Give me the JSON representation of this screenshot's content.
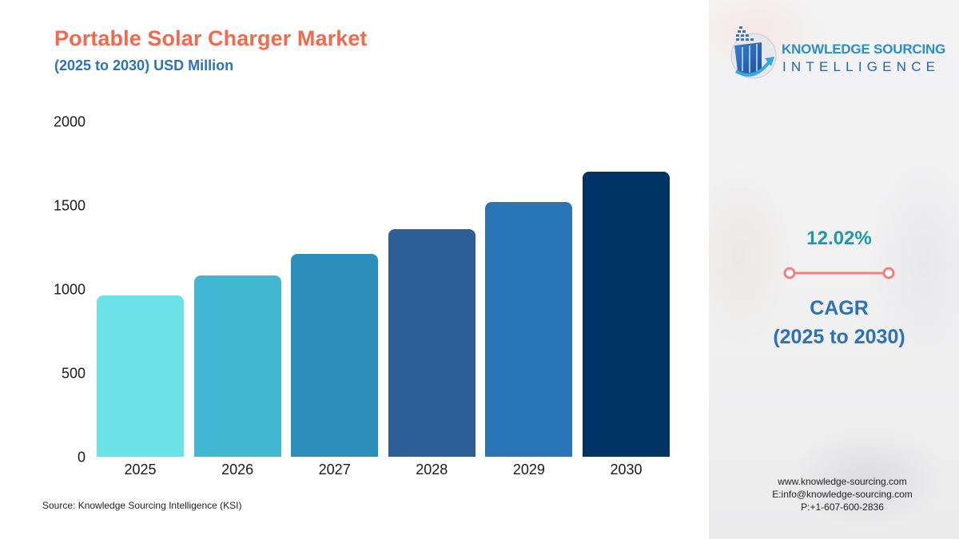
{
  "header": {
    "title": "Portable Solar Charger Market",
    "subtitle": "(2025 to 2030) USD Million"
  },
  "colors": {
    "title": "#f26a4b",
    "subtitle": "#2b72b8",
    "cagr_value": "#1f98a8",
    "cagr_connector": "#f08080",
    "bars": [
      "#6be3e6",
      "#42b7d3",
      "#2d8dbb",
      "#2e5e96",
      "#2a74b8",
      "#023366"
    ]
  },
  "chart_data": {
    "type": "bar",
    "title": "Portable Solar Charger Market",
    "subtitle": "(2025 to 2030) USD Million",
    "xlabel": "",
    "ylabel": "USD Million",
    "categories": [
      "2025",
      "2026",
      "2027",
      "2028",
      "2029",
      "2030"
    ],
    "values": [
      964,
      1081,
      1211,
      1359,
      1520,
      1701
    ],
    "yticks": [
      "0",
      "500",
      "1000",
      "1500",
      "2000"
    ],
    "ylim": [
      0,
      2000
    ],
    "grid": false,
    "legend": null
  },
  "brand": {
    "line1": "KNOWLEDGE SOURCING",
    "line2": "INTELLIGENCE",
    "icon": "ksi-logo-icon"
  },
  "cagr": {
    "value": "12.02%",
    "label": "CAGR",
    "period": "(2025 to 2030)"
  },
  "source": "Source: Knowledge Sourcing Intelligence (KSI)",
  "contact": {
    "website": "www.knowledge-sourcing.com",
    "email": "E:info@knowledge-sourcing.com",
    "phone": "P:+1-607-600-2836"
  }
}
